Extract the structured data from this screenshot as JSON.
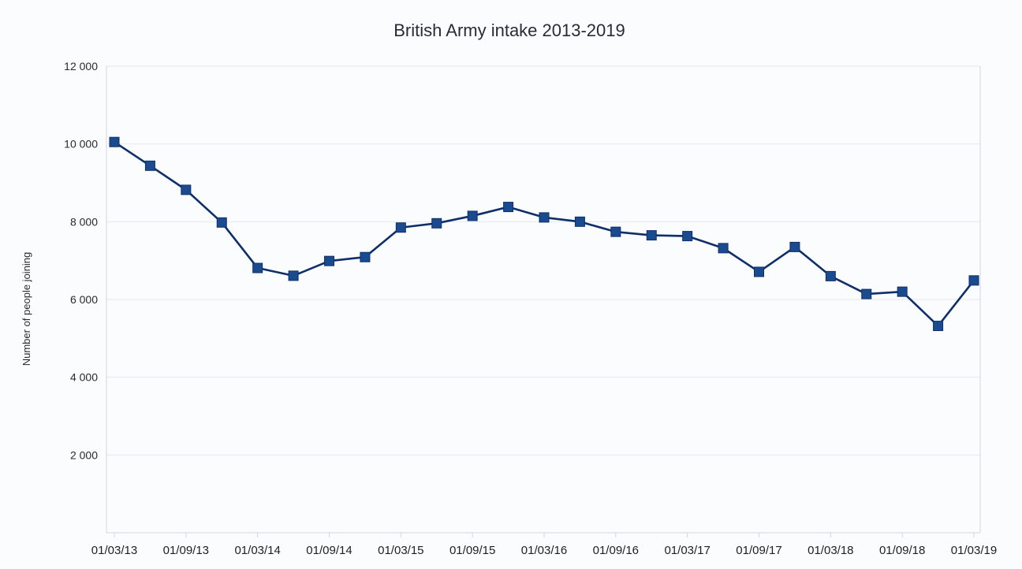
{
  "chart_data": {
    "type": "line",
    "title": "British Army intake 2013-2019",
    "xlabel": "",
    "ylabel": "Number of people joining",
    "ylim": [
      0,
      12000
    ],
    "y_ticks": [
      {
        "value": 2000,
        "label": "2 000"
      },
      {
        "value": 4000,
        "label": "4 000"
      },
      {
        "value": 6000,
        "label": "6 000"
      },
      {
        "value": 8000,
        "label": "8 000"
      },
      {
        "value": 10000,
        "label": "10 000"
      },
      {
        "value": 12000,
        "label": "12 000"
      }
    ],
    "x_ticks": [
      "01/03/13",
      "01/09/13",
      "01/03/14",
      "01/09/14",
      "01/03/15",
      "01/09/15",
      "01/03/16",
      "01/09/16",
      "01/03/17",
      "01/09/17",
      "01/03/18",
      "01/09/18",
      "01/03/19"
    ],
    "x": [
      "2013-03",
      "2013-06",
      "2013-09",
      "2013-12",
      "2014-03",
      "2014-06",
      "2014-09",
      "2014-12",
      "2015-03",
      "2015-06",
      "2015-09",
      "2015-12",
      "2016-03",
      "2016-06",
      "2016-09",
      "2016-12",
      "2017-03",
      "2017-06",
      "2017-09",
      "2017-12",
      "2018-03",
      "2018-06",
      "2018-09",
      "2018-12",
      "2019-03"
    ],
    "series": [
      {
        "values": [
          10050,
          9440,
          8820,
          7980,
          6810,
          6610,
          6990,
          7090,
          7850,
          7960,
          8150,
          8380,
          8110,
          8000,
          7740,
          7650,
          7630,
          7320,
          6710,
          7350,
          6600,
          6140,
          6200,
          5320,
          6490
        ]
      }
    ],
    "grid": true,
    "legend": "none",
    "colors": {
      "line": "#0f2f6b",
      "marker": "#1a4b8e",
      "background": "#fbfcfe",
      "grid": "#e3e7f0"
    }
  }
}
